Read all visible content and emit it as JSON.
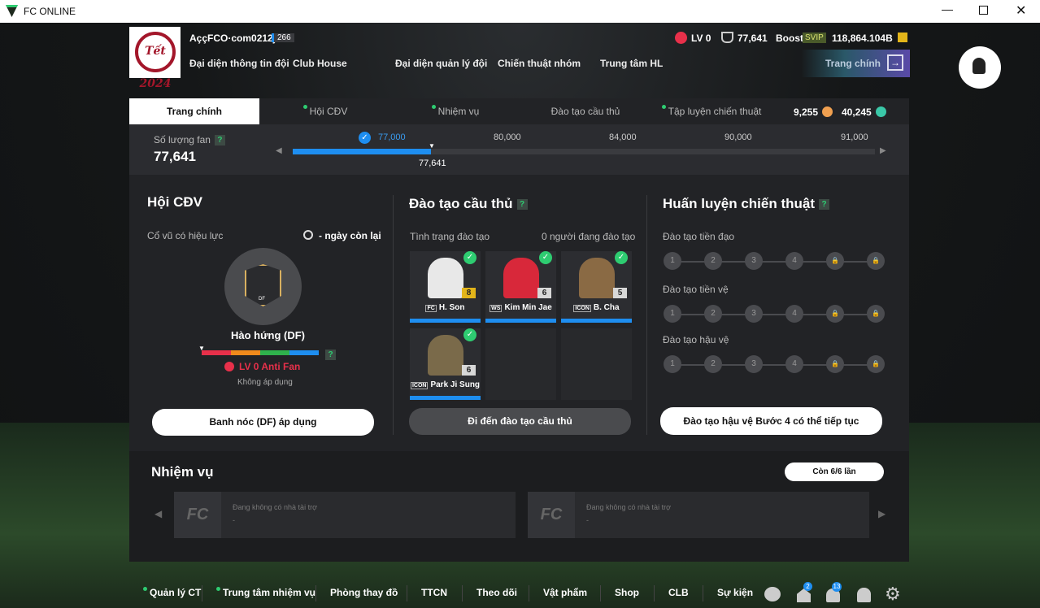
{
  "window": {
    "title": "FC ONLINE",
    "controls": [
      "minimize",
      "maximize",
      "close"
    ]
  },
  "header": {
    "logo_text": "Tết 2024",
    "username": "AççFCO·com0212j",
    "user_level": "266",
    "fan_level": "LV 0",
    "fans": "77,641",
    "boost_label": "Boost",
    "boost_badge": "SVIP",
    "bp": "118,864.104B",
    "nav": [
      "Đại diện thông tin đội",
      "Club House",
      "Đại diện quản lý đội",
      "Chiến thuật nhóm",
      "Trung tâm HL"
    ],
    "home_button": "Trang chính"
  },
  "tabs": [
    {
      "label": "Trang chính",
      "active": true,
      "dot": false
    },
    {
      "label": "Hội CĐV",
      "dot": true
    },
    {
      "label": "Nhiệm vụ",
      "dot": true
    },
    {
      "label": "Đào tạo cầu thủ",
      "dot": false
    },
    {
      "label": "Tập luyện chiến thuật",
      "dot": true
    }
  ],
  "currencies": {
    "sc": "9,255",
    "tc": "40,245"
  },
  "fan_count": {
    "label": "Số lượng fan",
    "help": "?",
    "value": "77,641",
    "marker": "77,641",
    "progress_value": 77641,
    "milestones": [
      "77,000",
      "80,000",
      "84,000",
      "90,000",
      "91,000"
    ],
    "milestone_reached": "77,000"
  },
  "fan_club": {
    "title": "Hội CĐV",
    "active_label": "Cổ vũ có hiệu lực",
    "days_left": "- ngày còn lại",
    "badge_text": "DF",
    "cheer_name": "Hào hứng (DF)",
    "help": "?",
    "level": "LV 0 Anti Fan",
    "status": "Không áp dụng",
    "button": "Banh nóc (DF) áp dụng",
    "gauge_colors": [
      "#e8304a",
      "#f08a1c",
      "#2fb24c",
      "#1e8ef0"
    ]
  },
  "training": {
    "title": "Đào tạo cầu thủ",
    "help": "?",
    "status_label": "Tình trạng đào tạo",
    "count_label": "0 người đang đào tạo",
    "players": [
      {
        "name": "H. Son",
        "ovr": "8",
        "season": "FC",
        "ovr_color": "#e3b51a"
      },
      {
        "name": "Kim Min Jae",
        "ovr": "6",
        "season": "WS",
        "ovr_color": "#d8d8d8"
      },
      {
        "name": "B. Cha",
        "ovr": "5",
        "season": "ICON",
        "ovr_color": "#d8d8d8"
      },
      {
        "name": "Park Ji Sung",
        "ovr": "6",
        "season": "ICON",
        "ovr_color": "#d8d8d8"
      }
    ],
    "button": "Đi đến đào tạo cầu thủ"
  },
  "tactics": {
    "title": "Huấn luyện chiến thuật",
    "help": "?",
    "rows": [
      "Đào tạo tiền đạo",
      "Đào tạo tiền vệ",
      "Đào tạo hậu vệ"
    ],
    "steps": [
      "1",
      "2",
      "3",
      "4"
    ],
    "button": "Đào tạo hậu vệ Bước 4 có thể tiếp tục"
  },
  "missions": {
    "title": "Nhiệm vụ",
    "remaining": "Còn 6/6 lần",
    "items": [
      {
        "text": "Đang không có nhà tài trợ",
        "sub": "-"
      },
      {
        "text": "Đang không có nhà tài trợ",
        "sub": "-"
      }
    ]
  },
  "bottom_nav": [
    {
      "label": "Quản lý CT",
      "dot": true
    },
    {
      "label": "Trung tâm nhiệm vụ",
      "dot": true
    },
    {
      "label": "Phòng thay đồ"
    },
    {
      "label": "TTCN"
    },
    {
      "label": "Theo dõi"
    },
    {
      "label": "Vật phẩm"
    },
    {
      "label": "Shop"
    },
    {
      "label": "CLB"
    },
    {
      "label": "Sự kiện"
    }
  ],
  "badges": {
    "home": "2",
    "notifications": "13"
  }
}
